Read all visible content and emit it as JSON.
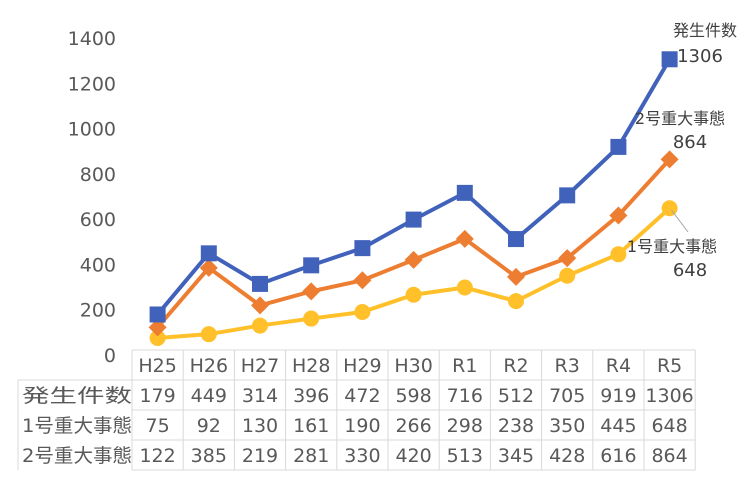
{
  "chart_data": {
    "type": "line",
    "categories": [
      "H25",
      "H26",
      "H27",
      "H28",
      "H29",
      "H30",
      "R1",
      "R2",
      "R3",
      "R4",
      "R5"
    ],
    "ylim": [
      0,
      1400
    ],
    "yticks": [
      0,
      200,
      400,
      600,
      800,
      1000,
      1200,
      1400
    ],
    "grid": false,
    "legend": "data table below chart",
    "series": [
      {
        "name": "発生件数",
        "values": [
          179,
          449,
          314,
          396,
          472,
          598,
          716,
          512,
          705,
          919,
          1306
        ],
        "color": "#4062BB",
        "marker": "square",
        "end_label": "1306"
      },
      {
        "name": "1号重大事態",
        "values": [
          75,
          92,
          130,
          161,
          190,
          266,
          298,
          238,
          350,
          445,
          648
        ],
        "color": "#FFC02A",
        "marker": "circle",
        "end_label": "648"
      },
      {
        "name": "2号重大事態",
        "values": [
          122,
          385,
          219,
          281,
          330,
          420,
          513,
          345,
          428,
          616,
          864
        ],
        "color": "#ED7D31",
        "marker": "diamond",
        "end_label": "864"
      }
    ]
  }
}
